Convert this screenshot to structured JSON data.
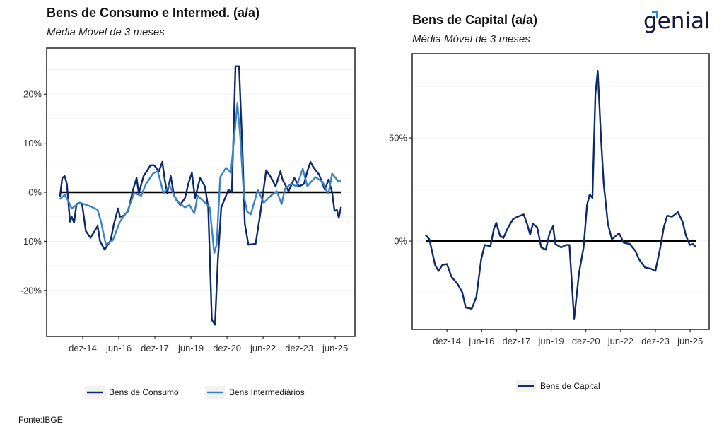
{
  "logo": {
    "text": "genial"
  },
  "source": "Fonte:IBGE",
  "colors": {
    "consumo": "#0d2a6b",
    "intermediarios": "#3a84c5",
    "capital": "#0d2a6b",
    "zero": "#000000"
  },
  "chart_data": [
    {
      "type": "line",
      "title": "Bens de Consumo e Intermed. (a/a)",
      "subtitle": "Média Móvel de 3 meses",
      "xlabel": "",
      "ylabel": "",
      "xlim": [
        2013.42,
        2026.24
      ],
      "ylim": [
        -29.4,
        29.4
      ],
      "yticks": [
        20,
        10,
        0,
        -10,
        -20
      ],
      "ytick_labels": [
        "20%",
        "10%",
        "0%",
        "-10%",
        "-20%"
      ],
      "xticks": [
        2014.92,
        2016.42,
        2017.92,
        2019.42,
        2020.92,
        2022.42,
        2023.92,
        2025.42
      ],
      "xtick_labels": [
        "dez-14",
        "jun-16",
        "dez-17",
        "jun-19",
        "dez-20",
        "jun-22",
        "dez-23",
        "jun-25"
      ],
      "legend_position": "bottom",
      "series": [
        {
          "name": "Bens de Consumo",
          "color_key": "consumo",
          "points": [
            [
              2013.97,
              -1
            ],
            [
              2014.07,
              2.9
            ],
            [
              2014.17,
              3.3
            ],
            [
              2014.26,
              1.7
            ],
            [
              2014.39,
              -6
            ],
            [
              2014.46,
              -5
            ],
            [
              2014.56,
              -6.2
            ],
            [
              2014.66,
              -2.4
            ],
            [
              2014.8,
              -2.1
            ],
            [
              2014.9,
              -2.6
            ],
            [
              2015.05,
              -7.9
            ],
            [
              2015.24,
              -9.3
            ],
            [
              2015.54,
              -6.9
            ],
            [
              2015.64,
              -10
            ],
            [
              2015.83,
              -11.7
            ],
            [
              2016.08,
              -9.8
            ],
            [
              2016.22,
              -6.4
            ],
            [
              2016.39,
              -3.3
            ],
            [
              2016.47,
              -5
            ],
            [
              2016.62,
              -4.8
            ],
            [
              2016.81,
              -3.8
            ],
            [
              2017.01,
              0.5
            ],
            [
              2017.16,
              2.9
            ],
            [
              2017.25,
              -0.2
            ],
            [
              2017.45,
              3.3
            ],
            [
              2017.74,
              5.5
            ],
            [
              2017.89,
              5.5
            ],
            [
              2018.09,
              4.3
            ],
            [
              2018.23,
              6.2
            ],
            [
              2018.33,
              2.6
            ],
            [
              2018.43,
              -0.2
            ],
            [
              2018.58,
              3.3
            ],
            [
              2018.72,
              -0.7
            ],
            [
              2018.97,
              -2.6
            ],
            [
              2019.17,
              -1.2
            ],
            [
              2019.31,
              1.7
            ],
            [
              2019.46,
              4
            ],
            [
              2019.59,
              -1.2
            ],
            [
              2019.8,
              2.9
            ],
            [
              2020.0,
              1.2
            ],
            [
              2020.14,
              -3.1
            ],
            [
              2020.29,
              -26
            ],
            [
              2020.42,
              -27
            ],
            [
              2020.54,
              -14
            ],
            [
              2020.68,
              -3.1
            ],
            [
              2020.98,
              0.5
            ],
            [
              2021.12,
              0
            ],
            [
              2021.27,
              25.7
            ],
            [
              2021.42,
              25.7
            ],
            [
              2021.57,
              7.4
            ],
            [
              2021.66,
              -6.4
            ],
            [
              2021.81,
              -10.7
            ],
            [
              2022.11,
              -10.5
            ],
            [
              2022.3,
              -4.5
            ],
            [
              2022.55,
              4.5
            ],
            [
              2022.74,
              3.1
            ],
            [
              2022.94,
              1.2
            ],
            [
              2023.14,
              4.3
            ],
            [
              2023.23,
              2.6
            ],
            [
              2023.48,
              0.2
            ],
            [
              2023.72,
              2.9
            ],
            [
              2023.92,
              1.2
            ],
            [
              2024.12,
              1.7
            ],
            [
              2024.26,
              4.3
            ],
            [
              2024.39,
              6.2
            ],
            [
              2024.5,
              5.2
            ],
            [
              2024.75,
              3.6
            ],
            [
              2024.99,
              0.5
            ],
            [
              2025.14,
              2.6
            ],
            [
              2025.29,
              0
            ],
            [
              2025.39,
              -3.8
            ],
            [
              2025.49,
              -3.6
            ],
            [
              2025.57,
              -5.2
            ],
            [
              2025.66,
              -3
            ]
          ]
        },
        {
          "name": "Bens Intermediários",
          "color_key": "intermediarios",
          "points": [
            [
              2013.97,
              -1.4
            ],
            [
              2014.17,
              -0.5
            ],
            [
              2014.31,
              -1.7
            ],
            [
              2014.46,
              -3.3
            ],
            [
              2014.8,
              -2.1
            ],
            [
              2015.09,
              -2.6
            ],
            [
              2015.34,
              -3.1
            ],
            [
              2015.54,
              -3.6
            ],
            [
              2015.68,
              -6
            ],
            [
              2015.88,
              -10.7
            ],
            [
              2016.17,
              -9.8
            ],
            [
              2016.47,
              -6
            ],
            [
              2016.76,
              -4
            ],
            [
              2017.06,
              -0.2
            ],
            [
              2017.35,
              -0.7
            ],
            [
              2017.55,
              1.7
            ],
            [
              2017.84,
              3.8
            ],
            [
              2018.04,
              4.3
            ],
            [
              2018.28,
              -0.2
            ],
            [
              2018.53,
              1.4
            ],
            [
              2018.82,
              -1.7
            ],
            [
              2019.17,
              -3.1
            ],
            [
              2019.36,
              -2.6
            ],
            [
              2019.56,
              -4.3
            ],
            [
              2019.7,
              -0.7
            ],
            [
              2020.0,
              -2.1
            ],
            [
              2020.2,
              -3.1
            ],
            [
              2020.39,
              -12.4
            ],
            [
              2020.49,
              -10.7
            ],
            [
              2020.64,
              3.1
            ],
            [
              2020.88,
              5
            ],
            [
              2021.08,
              4
            ],
            [
              2021.22,
              11.2
            ],
            [
              2021.35,
              18.1
            ],
            [
              2021.47,
              11.2
            ],
            [
              2021.62,
              -0.7
            ],
            [
              2021.76,
              -4
            ],
            [
              2021.91,
              -4.5
            ],
            [
              2022.2,
              0.5
            ],
            [
              2022.45,
              -2.1
            ],
            [
              2022.74,
              -0.7
            ],
            [
              2022.99,
              0.2
            ],
            [
              2023.19,
              -2.4
            ],
            [
              2023.33,
              0.7
            ],
            [
              2023.58,
              1.7
            ],
            [
              2023.82,
              1.2
            ],
            [
              2024.07,
              4.8
            ],
            [
              2024.26,
              1.2
            ],
            [
              2024.41,
              2.1
            ],
            [
              2024.6,
              3.1
            ],
            [
              2024.9,
              2.1
            ],
            [
              2025.04,
              0.5
            ],
            [
              2025.14,
              -0.2
            ],
            [
              2025.29,
              3.8
            ],
            [
              2025.44,
              2.9
            ],
            [
              2025.57,
              2.1
            ],
            [
              2025.66,
              2.4
            ]
          ]
        }
      ]
    },
    {
      "type": "line",
      "title": "Bens de Capital (a/a)",
      "subtitle": "Média Móvel de 3 meses",
      "xlabel": "",
      "ylabel": "",
      "xlim": [
        2013.42,
        2026.24
      ],
      "ylim": [
        -42.8,
        90.8
      ],
      "yticks": [
        50,
        0
      ],
      "ytick_labels": [
        "50%",
        "0%"
      ],
      "minor_grid": [
        75,
        25,
        -25
      ],
      "xticks": [
        2014.92,
        2016.42,
        2017.92,
        2019.42,
        2020.92,
        2022.42,
        2023.92,
        2025.42
      ],
      "xtick_labels": [
        "dez-14",
        "jun-16",
        "dez-17",
        "jun-19",
        "dez-20",
        "jun-22",
        "dez-23",
        "jun-25"
      ],
      "legend_position": "bottom",
      "series": [
        {
          "name": "Bens de Capital",
          "color_key": "capital",
          "points": [
            [
              2014.0,
              2.9
            ],
            [
              2014.16,
              0.9
            ],
            [
              2014.41,
              -11.6
            ],
            [
              2014.56,
              -14.5
            ],
            [
              2014.72,
              -11.6
            ],
            [
              2014.92,
              -11.1
            ],
            [
              2015.12,
              -17.4
            ],
            [
              2015.38,
              -20.8
            ],
            [
              2015.58,
              -24.8
            ],
            [
              2015.73,
              -32.2
            ],
            [
              2015.99,
              -32.8
            ],
            [
              2016.19,
              -27.1
            ],
            [
              2016.4,
              -8.8
            ],
            [
              2016.55,
              -1.9
            ],
            [
              2016.8,
              -2.5
            ],
            [
              2016.95,
              6
            ],
            [
              2017.05,
              8.9
            ],
            [
              2017.21,
              2.6
            ],
            [
              2017.36,
              1.5
            ],
            [
              2017.51,
              5.5
            ],
            [
              2017.77,
              10.6
            ],
            [
              2017.97,
              11.8
            ],
            [
              2018.23,
              12.9
            ],
            [
              2018.38,
              8.3
            ],
            [
              2018.51,
              3.2
            ],
            [
              2018.63,
              8.3
            ],
            [
              2018.82,
              6.6
            ],
            [
              2018.99,
              -3.1
            ],
            [
              2019.19,
              -4.2
            ],
            [
              2019.35,
              3.8
            ],
            [
              2019.5,
              7.2
            ],
            [
              2019.6,
              -1.4
            ],
            [
              2019.85,
              -3.1
            ],
            [
              2020.06,
              -1.9
            ],
            [
              2020.21,
              -1.9
            ],
            [
              2020.41,
              -37.9
            ],
            [
              2020.62,
              -15.6
            ],
            [
              2020.82,
              -3.1
            ],
            [
              2020.97,
              17.5
            ],
            [
              2021.08,
              22.6
            ],
            [
              2021.2,
              20.9
            ],
            [
              2021.33,
              71.1
            ],
            [
              2021.43,
              82.5
            ],
            [
              2021.58,
              48.3
            ],
            [
              2021.69,
              27.7
            ],
            [
              2021.87,
              8.3
            ],
            [
              2022.04,
              0.9
            ],
            [
              2022.35,
              3.8
            ],
            [
              2022.55,
              -0.8
            ],
            [
              2022.81,
              -1.4
            ],
            [
              2023.06,
              -4.8
            ],
            [
              2023.21,
              -8.8
            ],
            [
              2023.47,
              -12.8
            ],
            [
              2023.72,
              -13.4
            ],
            [
              2023.92,
              -14.5
            ],
            [
              2024.13,
              -3.1
            ],
            [
              2024.28,
              6.6
            ],
            [
              2024.43,
              12.3
            ],
            [
              2024.64,
              11.8
            ],
            [
              2024.89,
              14
            ],
            [
              2025.09,
              9.5
            ],
            [
              2025.24,
              2.6
            ],
            [
              2025.4,
              -1.9
            ],
            [
              2025.55,
              -1.4
            ],
            [
              2025.66,
              -2.9
            ]
          ]
        }
      ]
    }
  ]
}
